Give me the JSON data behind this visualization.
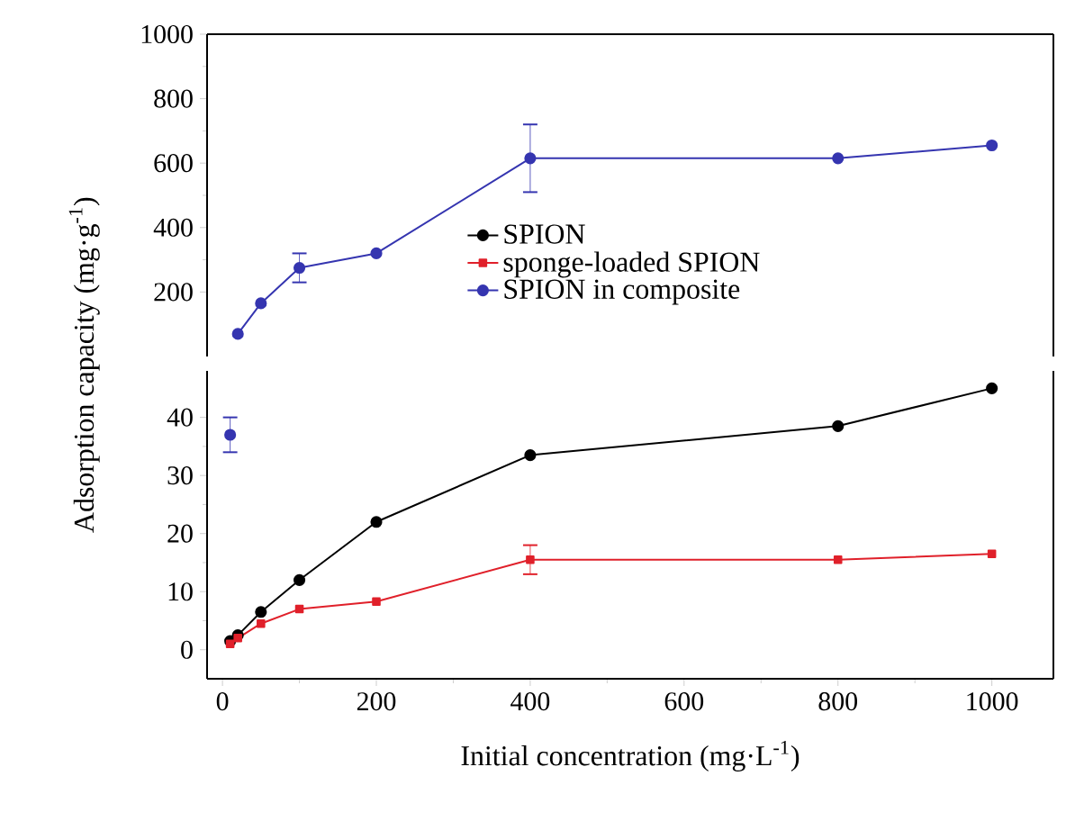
{
  "chart_data": [
    {
      "type": "line",
      "xlim": [
        -20,
        1080
      ],
      "ylim": [
        0,
        1000
      ],
      "yticks": [
        200,
        400,
        600,
        800,
        1000
      ],
      "xticks": [
        0,
        200,
        400,
        600,
        800,
        1000
      ],
      "tick_labels": "y",
      "marker": "circle",
      "series": [
        {
          "color": "#3535b0",
          "x": [
            20,
            50,
            100,
            200,
            400,
            800,
            1000
          ],
          "values": [
            70,
            165,
            275,
            320,
            615,
            615,
            655
          ],
          "errors": [
            null,
            null,
            [
              230,
              320
            ],
            null,
            [
              510,
              720
            ],
            null,
            null
          ]
        }
      ]
    },
    {
      "type": "line",
      "xlim": [
        -20,
        1080
      ],
      "ylim": [
        -5,
        48
      ],
      "xticks": [
        0,
        200,
        400,
        600,
        800,
        1000
      ],
      "yticks": [
        0,
        10,
        20,
        30,
        40
      ],
      "xlabel": "Initial concentration (mg·L$^{-1}$)",
      "ylabel": "Adsorption capacity (mg·g$^{-1}$)",
      "legend": "right",
      "marker": "circle",
      "series": [
        {
          "name": "SPION",
          "color": "#000000",
          "marker": "circle",
          "x": [
            10,
            20,
            50,
            100,
            200,
            400,
            800,
            1000
          ],
          "values": [
            1.5,
            2.5,
            6.5,
            12,
            22,
            33.5,
            38.5,
            45
          ]
        },
        {
          "name": "sponge-loaded SPION",
          "color": "#e0202a",
          "marker": "square",
          "x": [
            10,
            20,
            50,
            100,
            200,
            400,
            800,
            1000
          ],
          "values": [
            1,
            2,
            4.5,
            7,
            8.3,
            15.5,
            15.5,
            16.5
          ],
          "errors": [
            null,
            null,
            null,
            null,
            null,
            [
              13,
              18
            ],
            null,
            null
          ]
        },
        {
          "name": "SPION in composite",
          "color": "#3535b0",
          "marker": "circle",
          "x": [
            10
          ],
          "values": [
            37
          ],
          "errors": [
            [
              34,
              40
            ]
          ]
        }
      ]
    }
  ]
}
